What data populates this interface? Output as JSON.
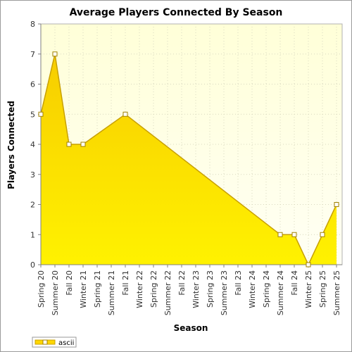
{
  "chart_data": {
    "type": "area",
    "title": "Average Players Connected By Season",
    "xlabel": "Season",
    "ylabel": "Players Connected",
    "categories": [
      "Spring 20",
      "Summer 20",
      "Fall 20",
      "Winter 21",
      "Spring 21",
      "Summer 21",
      "Fall 21",
      "Winter 22",
      "Spring 22",
      "Summer 22",
      "Fall 22",
      "Winter 23",
      "Spring 23",
      "Summer 23",
      "Fall 23",
      "Winter 24",
      "Spring 24",
      "Summer 24",
      "Fall 24",
      "Winter 25",
      "Spring 25",
      "Summer 25"
    ],
    "yticks": [
      "0",
      "1",
      "2",
      "3",
      "4",
      "5",
      "6",
      "7",
      "8"
    ],
    "ylim": [
      0,
      8
    ],
    "grid": true,
    "legend_position": "bottom-left",
    "series": [
      {
        "name": "ascii",
        "values": [
          5,
          7,
          4,
          4,
          null,
          null,
          5,
          null,
          null,
          null,
          null,
          null,
          null,
          null,
          null,
          null,
          null,
          1,
          1,
          0,
          1,
          2
        ],
        "color": "#ffd700"
      }
    ]
  }
}
